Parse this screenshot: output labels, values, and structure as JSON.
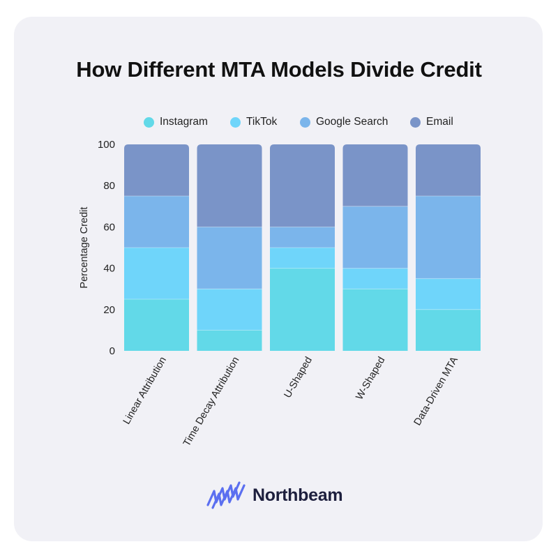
{
  "title": "How Different MTA Models Divide Credit",
  "brand": {
    "name": "Northbeam",
    "icon": "northbeam-logo-icon",
    "color": "#5b6ff0"
  },
  "chart_data": {
    "type": "bar",
    "stacked": true,
    "title": "How Different MTA Models Divide Credit",
    "xlabel": "",
    "ylabel": "Percentage Credit",
    "ylim": [
      0,
      100
    ],
    "yticks": [
      0,
      20,
      40,
      60,
      80,
      100
    ],
    "grid": false,
    "legend_position": "top",
    "categories": [
      "Linear Attribution",
      "Time Decay Attribution",
      "U-Shaped",
      "W-Shaped",
      "Data-Driven MTA"
    ],
    "series": [
      {
        "name": "Instagram",
        "color": "#62d9e8",
        "values": [
          25,
          10,
          40,
          30,
          20
        ]
      },
      {
        "name": "TikTok",
        "color": "#6fd5fa",
        "values": [
          25,
          20,
          10,
          10,
          15
        ]
      },
      {
        "name": "Google Search",
        "color": "#7bb5eb",
        "values": [
          25,
          30,
          10,
          30,
          40
        ]
      },
      {
        "name": "Email",
        "color": "#7a94c8",
        "values": [
          25,
          40,
          40,
          30,
          25
        ]
      }
    ]
  }
}
